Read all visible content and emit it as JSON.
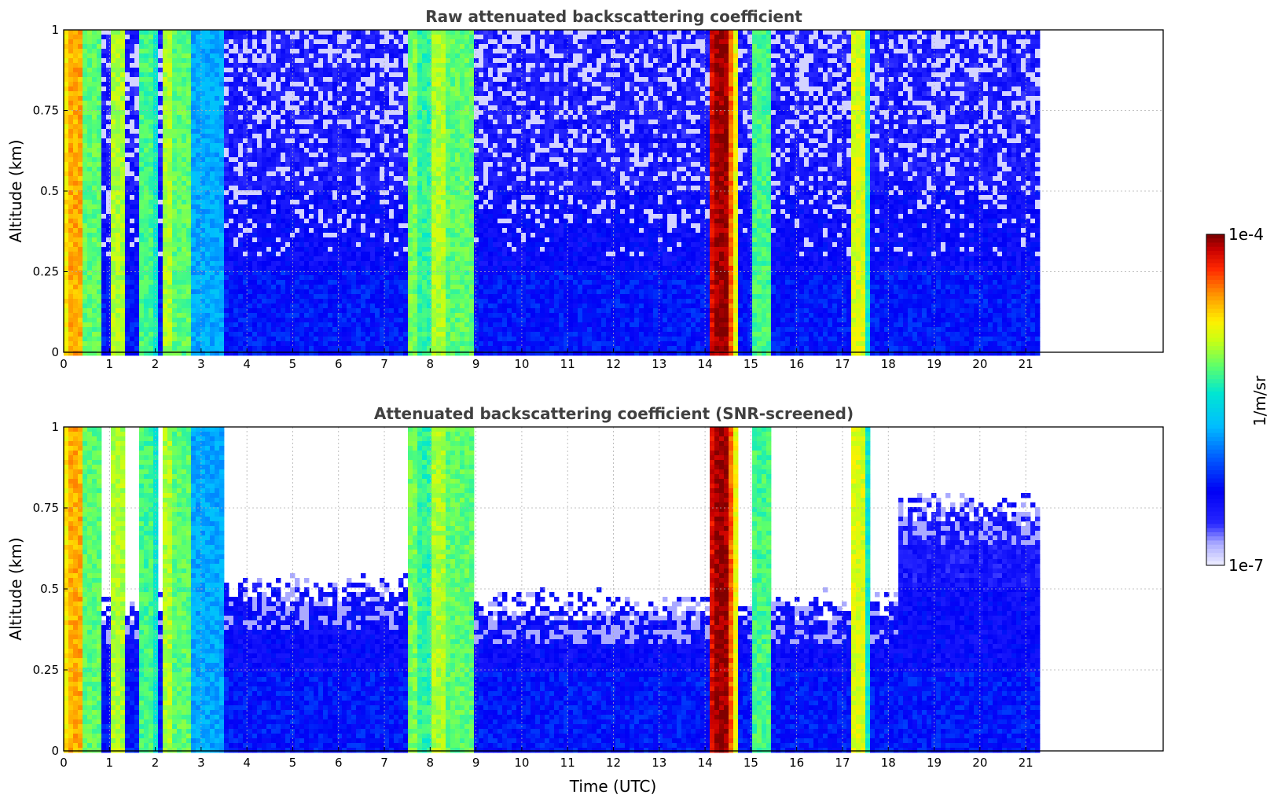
{
  "chart_data": [
    {
      "type": "heatmap",
      "title": "Raw attenuated backscattering coefficient",
      "xlabel": "",
      "ylabel": "Altitude (km)",
      "xlim": [
        0,
        24
      ],
      "ylim": [
        0,
        1
      ],
      "xticks": [
        "0",
        "1",
        "2",
        "3",
        "4",
        "5",
        "6",
        "7",
        "8",
        "9",
        "10",
        "11",
        "12",
        "13",
        "14",
        "15",
        "16",
        "17",
        "18",
        "19",
        "20",
        "21"
      ],
      "yticks": [
        "0",
        "0.25",
        "0.5",
        "0.75",
        "1"
      ],
      "data_extent_x": [
        0,
        21.3
      ],
      "grid": true,
      "screened": false,
      "colorscale": "jet",
      "features": [
        {
          "name": "aerosol/cloud columns",
          "x_ranges": [
            [
              0,
              0.8
            ],
            [
              1.0,
              1.3
            ],
            [
              1.7,
              2.1
            ],
            [
              2.2,
              2.8
            ],
            [
              7.5,
              9.0
            ],
            [
              14.1,
              14.8
            ],
            [
              15.0,
              15.4
            ],
            [
              17.2,
              17.6
            ]
          ]
        },
        {
          "name": "strongest returns (red)",
          "x_ranges": [
            [
              0.1,
              0.5
            ],
            [
              14.1,
              14.7
            ]
          ]
        },
        {
          "name": "boundary layer",
          "altitude_range": [
            0,
            0.25
          ]
        }
      ]
    },
    {
      "type": "heatmap",
      "title": "Attenuated backscattering coefficient (SNR-screened)",
      "xlabel": "Time (UTC)",
      "ylabel": "Altitude (km)",
      "xlim": [
        0,
        24
      ],
      "ylim": [
        0,
        1
      ],
      "xticks": [
        "0",
        "1",
        "2",
        "3",
        "4",
        "5",
        "6",
        "7",
        "8",
        "9",
        "10",
        "11",
        "12",
        "13",
        "14",
        "15",
        "16",
        "17",
        "18",
        "19",
        "20",
        "21"
      ],
      "yticks": [
        "0",
        "0.25",
        "0.5",
        "0.75",
        "1"
      ],
      "data_extent_x": [
        0,
        21.3
      ],
      "grid": true,
      "screened": true,
      "colorscale": "jet"
    }
  ],
  "colorbar": {
    "label": "1/m/sr",
    "max_label": "1e-4",
    "min_label": "1e-7",
    "placement": "right",
    "colors": [
      "#e8e8ff",
      "#b0b0ff",
      "#6060ff",
      "#0000ff",
      "#0040ff",
      "#0080ff",
      "#00c0ff",
      "#00e0e0",
      "#20f0b0",
      "#80ff60",
      "#c0ff20",
      "#ffff00",
      "#ffd000",
      "#ffa000",
      "#ff6000",
      "#ff2000",
      "#e00000",
      "#a00000",
      "#800000"
    ]
  }
}
